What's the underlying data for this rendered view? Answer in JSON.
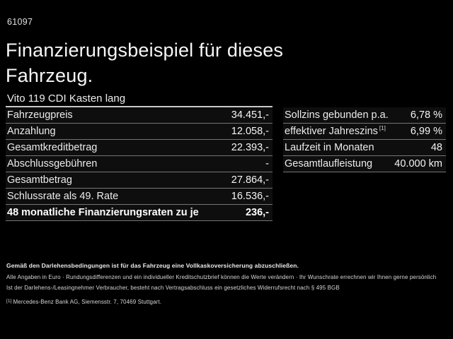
{
  "page": {
    "id_number": "61097",
    "title_line1": "Finanzierungsbeispiel für dieses",
    "title_line2": "Fahrzeug.",
    "vehicle_model": "Vito 119 CDI Kasten lang"
  },
  "finance_table": {
    "rows": [
      {
        "label": "Fahrzeugpreis",
        "value": "34.451,-"
      },
      {
        "label": "Anzahlung",
        "value": "12.058,-"
      },
      {
        "label": "Gesamtkreditbetrag",
        "value": "22.393,-"
      },
      {
        "label": "Abschlussgebühren",
        "value": "-"
      },
      {
        "label": "Gesamtbetrag",
        "value": "27.864,-"
      },
      {
        "label": "Schlussrate als 49. Rate",
        "value": "16.536,-"
      },
      {
        "label": "48 monatliche Finanzierungsraten zu je",
        "value": "236,-"
      }
    ]
  },
  "conditions_table": {
    "rows": [
      {
        "label": "Sollzins gebunden p.a.",
        "value": "6,78 %"
      },
      {
        "label": "effektiver Jahreszins",
        "sup": "[1]",
        "value": "6,99 %"
      },
      {
        "label": "Laufzeit in Monaten",
        "value": "48"
      },
      {
        "label": "Gesamtlaufleistung",
        "value": "40.000 km"
      }
    ]
  },
  "fine_print": {
    "line1_bold": "Gemäß den Darlehensbedingungen ist für das Fahrzeug eine Vollkaskoversicherung abzuschließen.",
    "line2": "Alle Angaben in Euro · Rundungsdifferenzen und ein individueller Kreditschutzbrief können die Werte verändern · Ihr Wunschrate errechnen wir Ihnen gerne persönlich",
    "line3": "Ist der Darlehens-/Leasingnehmer Verbraucher, besteht nach Vertragsabschluss ein gesetzliches Widerrufsrecht nach § 495 BGB",
    "footnote_marker": "[1]",
    "footnote_text": "Mercedes-Benz Bank AG, Siemensstr. 7, 70469 Stuttgart."
  },
  "colors": {
    "background": "#000000",
    "text_primary": "#f5f5f5",
    "separator": "#757575",
    "header_separator": "#c9c9c9"
  }
}
